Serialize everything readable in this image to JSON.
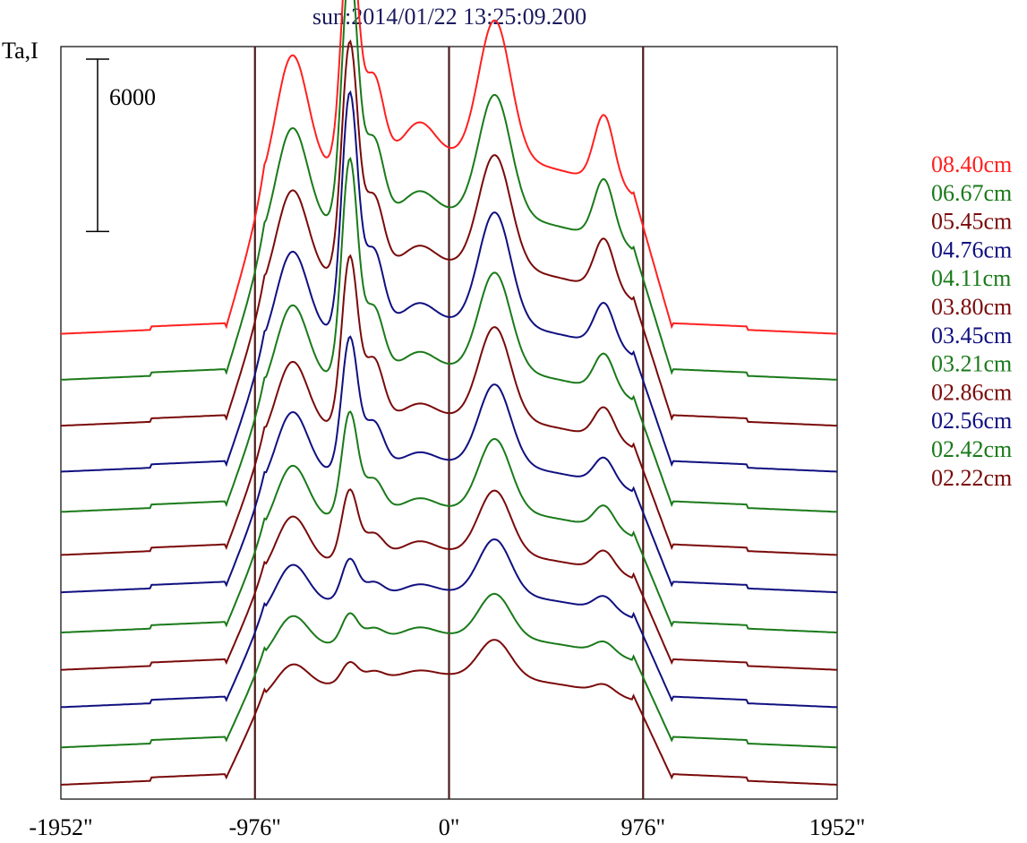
{
  "chart_data": {
    "type": "line",
    "title": "sun:2014/01/22 13:25:09.200",
    "ylabel": "Ta,I",
    "xlim": [
      -1952,
      1952
    ],
    "x_ticks": [
      {
        "value": -1952,
        "label": "-1952\""
      },
      {
        "value": -976,
        "label": "-976\""
      },
      {
        "value": 0,
        "label": "0\""
      },
      {
        "value": 976,
        "label": "976\""
      },
      {
        "value": 1952,
        "label": "1952\""
      }
    ],
    "vertical_lines": [
      -976,
      0,
      976
    ],
    "vertical_line_color": "#4d1a1a",
    "scale_bar": {
      "value": 6000,
      "label": "6000"
    },
    "legend": [
      {
        "label": "08.40cm",
        "color": "#ff2020"
      },
      {
        "label": "06.67cm",
        "color": "#1a7a1a"
      },
      {
        "label": "05.45cm",
        "color": "#7a0a0a"
      },
      {
        "label": "04.76cm",
        "color": "#101080"
      },
      {
        "label": "04.11cm",
        "color": "#1a7a1a"
      },
      {
        "label": "03.80cm",
        "color": "#7a0a0a"
      },
      {
        "label": "03.45cm",
        "color": "#101080"
      },
      {
        "label": "03.21cm",
        "color": "#1a7a1a"
      },
      {
        "label": "02.86cm",
        "color": "#7a0a0a"
      },
      {
        "label": "02.56cm",
        "color": "#101080"
      },
      {
        "label": "02.42cm",
        "color": "#1a7a1a"
      },
      {
        "label": "02.22cm",
        "color": "#7a0a0a"
      }
    ],
    "series": [
      {
        "color": "#ff2020",
        "baseline": 13000,
        "plateau": 6200,
        "peaks": [
          [
            -790,
            4500,
            80
          ],
          [
            -500,
            8500,
            40
          ],
          [
            -380,
            3000,
            50
          ],
          [
            -150,
            1200,
            80
          ],
          [
            230,
            4800,
            80
          ],
          [
            780,
            2400,
            50
          ]
        ]
      },
      {
        "color": "#1a7a1a",
        "baseline": 11400,
        "plateau": 5800,
        "peaks": [
          [
            -790,
            3900,
            80
          ],
          [
            -500,
            8800,
            40
          ],
          [
            -380,
            2800,
            50
          ],
          [
            -150,
            800,
            80
          ],
          [
            230,
            4200,
            80
          ],
          [
            780,
            2100,
            50
          ]
        ]
      },
      {
        "color": "#7a0a0a",
        "baseline": 9800,
        "plateau": 5600,
        "peaks": [
          [
            -790,
            3500,
            80
          ],
          [
            -500,
            8000,
            40
          ],
          [
            -380,
            2600,
            50
          ],
          [
            -150,
            700,
            80
          ],
          [
            230,
            3900,
            80
          ],
          [
            780,
            1800,
            50
          ]
        ]
      },
      {
        "color": "#101080",
        "baseline": 8200,
        "plateau": 5200,
        "peaks": [
          [
            -790,
            3300,
            80
          ],
          [
            -500,
            8200,
            40
          ],
          [
            -380,
            2700,
            50
          ],
          [
            -150,
            700,
            80
          ],
          [
            230,
            3900,
            80
          ],
          [
            780,
            1500,
            50
          ]
        ]
      },
      {
        "color": "#1a7a1a",
        "baseline": 6800,
        "plateau": 5000,
        "peaks": [
          [
            -790,
            3000,
            80
          ],
          [
            -500,
            7500,
            40
          ],
          [
            -380,
            2300,
            50
          ],
          [
            -150,
            600,
            80
          ],
          [
            230,
            3400,
            80
          ],
          [
            780,
            1300,
            50
          ]
        ]
      },
      {
        "color": "#7a0a0a",
        "baseline": 5300,
        "plateau": 4800,
        "peaks": [
          [
            -790,
            2700,
            80
          ],
          [
            -500,
            5800,
            40
          ],
          [
            -380,
            2200,
            50
          ],
          [
            -150,
            500,
            80
          ],
          [
            230,
            3200,
            80
          ],
          [
            780,
            1100,
            50
          ]
        ]
      },
      {
        "color": "#101080",
        "baseline": 4000,
        "plateau": 4500,
        "peaks": [
          [
            -790,
            2500,
            80
          ],
          [
            -500,
            4600,
            40
          ],
          [
            -380,
            1600,
            50
          ],
          [
            -150,
            400,
            80
          ],
          [
            230,
            2800,
            80
          ],
          [
            780,
            900,
            50
          ]
        ]
      },
      {
        "color": "#1a7a1a",
        "baseline": 2600,
        "plateau": 4300,
        "peaks": [
          [
            -790,
            2200,
            80
          ],
          [
            -500,
            3600,
            40
          ],
          [
            -380,
            1200,
            50
          ],
          [
            -150,
            400,
            80
          ],
          [
            230,
            2500,
            80
          ],
          [
            780,
            800,
            50
          ]
        ]
      },
      {
        "color": "#7a0a0a",
        "baseline": 1300,
        "plateau": 4100,
        "peaks": [
          [
            -790,
            1900,
            80
          ],
          [
            -500,
            2400,
            40
          ],
          [
            -380,
            800,
            50
          ],
          [
            -150,
            400,
            80
          ],
          [
            230,
            2200,
            80
          ],
          [
            780,
            700,
            50
          ]
        ]
      },
      {
        "color": "#101080",
        "baseline": 0,
        "plateau": 4000,
        "peaks": [
          [
            -790,
            1600,
            80
          ],
          [
            -500,
            1400,
            40
          ],
          [
            -380,
            500,
            50
          ],
          [
            -150,
            300,
            80
          ],
          [
            230,
            1900,
            80
          ],
          [
            780,
            500,
            50
          ]
        ]
      },
      {
        "color": "#1a7a1a",
        "baseline": -1400,
        "plateau": 3900,
        "peaks": [
          [
            -790,
            1300,
            80
          ],
          [
            -500,
            1000,
            40
          ],
          [
            -380,
            400,
            50
          ],
          [
            -150,
            300,
            80
          ],
          [
            230,
            1500,
            80
          ],
          [
            780,
            400,
            50
          ]
        ]
      },
      {
        "color": "#7a0a0a",
        "baseline": -2700,
        "plateau": 3800,
        "peaks": [
          [
            -790,
            1000,
            80
          ],
          [
            -500,
            700,
            40
          ],
          [
            -380,
            300,
            50
          ],
          [
            -150,
            200,
            80
          ],
          [
            230,
            1300,
            80
          ],
          [
            780,
            300,
            50
          ]
        ]
      }
    ],
    "ylim": [
      -3200,
      23000
    ]
  }
}
